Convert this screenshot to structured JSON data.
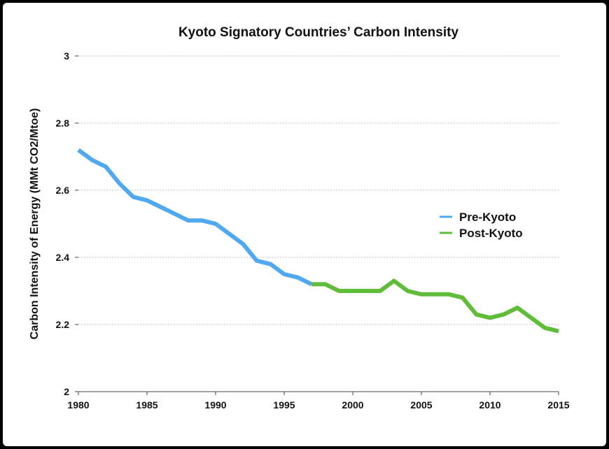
{
  "chart_data": {
    "type": "line",
    "title": "Kyoto Signatory Countries’ Carbon Intensity",
    "xlabel": "",
    "ylabel": "Carbon Intensity of Energy (MMt CO2/Mtoe)",
    "xlim": [
      1980,
      2015
    ],
    "ylim": [
      2,
      3
    ],
    "x_ticks": [
      "1980",
      "1985",
      "1990",
      "1995",
      "2000",
      "2005",
      "2010",
      "2015"
    ],
    "y_ticks": [
      "3",
      "2.8",
      "2.6",
      "2.4",
      "2.2",
      "2"
    ],
    "grid": true,
    "legend_position": "right",
    "series": [
      {
        "name": "Pre-Kyoto",
        "color": "#4fa8f0",
        "x": [
          1980,
          1981,
          1982,
          1983,
          1984,
          1985,
          1986,
          1987,
          1988,
          1989,
          1990,
          1991,
          1992,
          1993,
          1994,
          1995,
          1996,
          1997
        ],
        "y": [
          2.72,
          2.69,
          2.67,
          2.62,
          2.58,
          2.57,
          2.55,
          2.53,
          2.51,
          2.51,
          2.5,
          2.47,
          2.44,
          2.39,
          2.38,
          2.35,
          2.34,
          2.32
        ]
      },
      {
        "name": "Post-Kyoto",
        "color": "#5fbd3a",
        "x": [
          1997,
          1998,
          1999,
          2000,
          2001,
          2002,
          2003,
          2004,
          2005,
          2006,
          2007,
          2008,
          2009,
          2010,
          2011,
          2012,
          2013,
          2014,
          2015
        ],
        "y": [
          2.32,
          2.32,
          2.3,
          2.3,
          2.3,
          2.3,
          2.33,
          2.3,
          2.29,
          2.29,
          2.29,
          2.28,
          2.23,
          2.22,
          2.23,
          2.25,
          2.22,
          2.19,
          2.18
        ]
      }
    ]
  }
}
